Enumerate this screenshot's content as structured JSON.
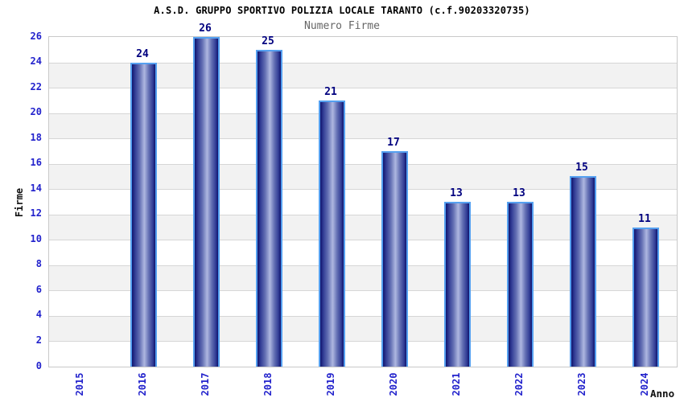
{
  "header": {
    "title": "A.S.D. GRUPPO SPORTIVO POLIZIA LOCALE TARANTO (c.f.90203320735)",
    "subtitle": "Numero Firme"
  },
  "chart_data": {
    "type": "bar",
    "title": "A.S.D. GRUPPO SPORTIVO POLIZIA LOCALE TARANTO (c.f.90203320735)",
    "subtitle": "Numero Firme",
    "categories": [
      "2015",
      "2016",
      "2017",
      "2018",
      "2019",
      "2020",
      "2021",
      "2022",
      "2023",
      "2024"
    ],
    "values": [
      0,
      24,
      26,
      25,
      21,
      17,
      13,
      13,
      15,
      11
    ],
    "value_labels": [
      "",
      "24",
      "26",
      "25",
      "21",
      "17",
      "13",
      "13",
      "15",
      "11"
    ],
    "xlabel": "Anno",
    "ylabel": "Firme",
    "ylim": [
      0,
      26
    ],
    "ytick_step": 2,
    "ytick_labels": [
      "0",
      "2",
      "4",
      "6",
      "8",
      "10",
      "12",
      "14",
      "16",
      "18",
      "20",
      "22",
      "24",
      "26"
    ],
    "grid": "horizontal-bands",
    "legend": "none",
    "colors": {
      "title": "#000000",
      "subtitle": "#666666",
      "tick_label": "#2222cc",
      "value_label": "#00007f",
      "axis_title": "#111111",
      "bar_dark": "#10146e",
      "bar_mid": "#343f97",
      "bar_light": "#aeb7e0",
      "bar_border": "#55a0f0",
      "band_alt": "#f2f2f2",
      "band_main": "#ffffff",
      "grid_line": "#d6d6d6",
      "plot_border": "#c9c9c9"
    }
  }
}
